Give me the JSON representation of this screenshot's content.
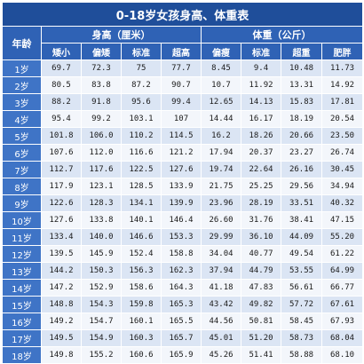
{
  "title": "0-18岁女孩身高、体重表",
  "headers": {
    "age": "年龄",
    "height_group": "身高（厘米）",
    "weight_group": "体重（公斤）",
    "height_cols": [
      "矮小",
      "偏矮",
      "标准",
      "超高"
    ],
    "weight_cols": [
      "偏瘦",
      "标准",
      "超重",
      "肥胖"
    ]
  },
  "rows": [
    {
      "age": "1岁",
      "h": [
        "69.7",
        "72.3",
        "75",
        "77.7"
      ],
      "w": [
        "8.45",
        "9.4",
        "10.48",
        "11.73"
      ]
    },
    {
      "age": "2岁",
      "h": [
        "80.5",
        "83.8",
        "87.2",
        "90.7"
      ],
      "w": [
        "10.7",
        "11.92",
        "13.31",
        "14.92"
      ]
    },
    {
      "age": "3岁",
      "h": [
        "88.2",
        "91.8",
        "95.6",
        "99.4"
      ],
      "w": [
        "12.65",
        "14.13",
        "15.83",
        "17.81"
      ]
    },
    {
      "age": "4岁",
      "h": [
        "95.4",
        "99.2",
        "103.1",
        "107"
      ],
      "w": [
        "14.44",
        "16.17",
        "18.19",
        "20.54"
      ]
    },
    {
      "age": "5岁",
      "h": [
        "101.8",
        "106.0",
        "110.2",
        "114.5"
      ],
      "w": [
        "16.2",
        "18.26",
        "20.66",
        "23.50"
      ]
    },
    {
      "age": "6岁",
      "h": [
        "107.6",
        "112.0",
        "116.6",
        "121.2"
      ],
      "w": [
        "17.94",
        "20.37",
        "23.27",
        "26.74"
      ]
    },
    {
      "age": "7岁",
      "h": [
        "112.7",
        "117.6",
        "122.5",
        "127.6"
      ],
      "w": [
        "19.74",
        "22.64",
        "26.16",
        "30.45"
      ]
    },
    {
      "age": "8岁",
      "h": [
        "117.9",
        "123.1",
        "128.5",
        "133.9"
      ],
      "w": [
        "21.75",
        "25.25",
        "29.56",
        "34.94"
      ]
    },
    {
      "age": "9岁",
      "h": [
        "122.6",
        "128.3",
        "134.1",
        "139.9"
      ],
      "w": [
        "23.96",
        "28.19",
        "33.51",
        "40.32"
      ]
    },
    {
      "age": "10岁",
      "h": [
        "127.6",
        "133.8",
        "140.1",
        "146.4"
      ],
      "w": [
        "26.60",
        "31.76",
        "38.41",
        "47.15"
      ]
    },
    {
      "age": "11岁",
      "h": [
        "133.4",
        "140.0",
        "146.6",
        "153.3"
      ],
      "w": [
        "29.99",
        "36.10",
        "44.09",
        "55.20"
      ]
    },
    {
      "age": "12岁",
      "h": [
        "139.5",
        "145.9",
        "152.4",
        "158.8"
      ],
      "w": [
        "34.04",
        "40.77",
        "49.54",
        "61.22"
      ]
    },
    {
      "age": "13岁",
      "h": [
        "144.2",
        "150.3",
        "156.3",
        "162.3"
      ],
      "w": [
        "37.94",
        "44.79",
        "53.55",
        "64.99"
      ]
    },
    {
      "age": "14岁",
      "h": [
        "147.2",
        "152.9",
        "158.6",
        "164.3"
      ],
      "w": [
        "41.18",
        "47.83",
        "56.61",
        "66.77"
      ]
    },
    {
      "age": "15岁",
      "h": [
        "148.8",
        "154.3",
        "159.8",
        "165.3"
      ],
      "w": [
        "43.42",
        "49.82",
        "57.72",
        "67.61"
      ]
    },
    {
      "age": "16岁",
      "h": [
        "149.2",
        "154.7",
        "160.1",
        "165.5"
      ],
      "w": [
        "44.56",
        "50.81",
        "58.45",
        "67.93"
      ]
    },
    {
      "age": "17岁",
      "h": [
        "149.5",
        "154.9",
        "160.3",
        "165.7"
      ],
      "w": [
        "45.01",
        "51.20",
        "58.73",
        "68.04"
      ]
    },
    {
      "age": "18岁",
      "h": [
        "149.8",
        "155.2",
        "160.6",
        "165.9"
      ],
      "w": [
        "45.26",
        "51.41",
        "58.88",
        "68.10"
      ]
    }
  ]
}
